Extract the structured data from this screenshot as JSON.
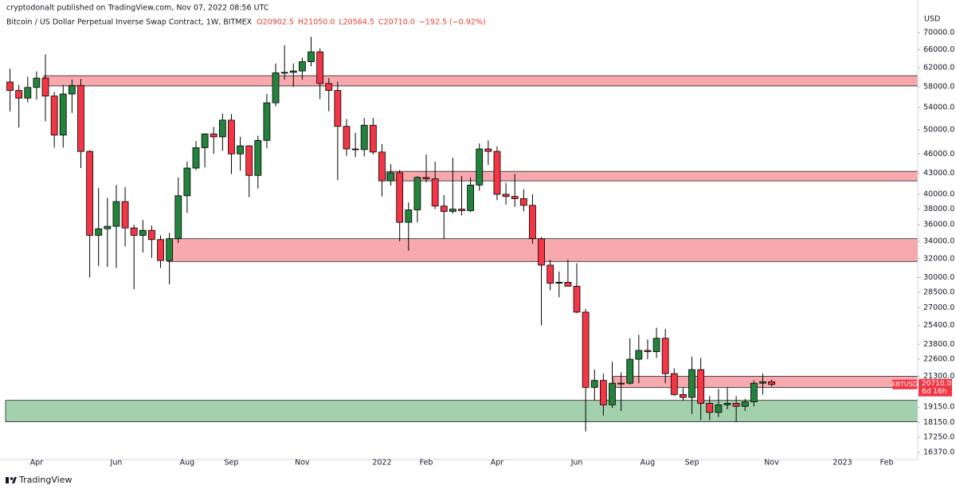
{
  "header": {
    "published": "cryptodonalt published on TradingView.com, Nov 07, 2022 08:56 UTC",
    "symbol": "Bitcoin / US Dollar Perpetual Inverse Swap Contract, 1W, BITMEX",
    "ohlc": [
      "O20902.5",
      "H21050.0",
      "L20564.5",
      "C20710.0"
    ],
    "change": "−192.5 (−0.92%)"
  },
  "chart_data": {
    "type": "candlestick",
    "categories": [
      null,
      null,
      null,
      "Apr",
      null,
      null,
      null,
      null,
      null,
      null,
      null,
      null,
      "Jun",
      null,
      null,
      null,
      null,
      null,
      null,
      null,
      "Aug",
      null,
      null,
      null,
      null,
      "Sep",
      null,
      null,
      null,
      null,
      null,
      null,
      null,
      "Nov",
      null,
      null,
      null,
      null,
      null,
      null,
      null,
      null,
      "2022",
      null,
      null,
      null,
      null,
      "Feb",
      null,
      null,
      null,
      null,
      null,
      null,
      null,
      "Apr",
      null,
      null,
      null,
      null,
      null,
      null,
      null,
      null,
      "Jun",
      null,
      null,
      null,
      null,
      null,
      null,
      null,
      "Aug",
      null,
      null,
      null,
      null,
      "Sep",
      null,
      null,
      null,
      null,
      null,
      null,
      null,
      null,
      "Nov",
      null,
      null,
      null,
      null,
      null,
      null,
      null,
      "2023",
      null,
      null,
      null,
      null,
      "Feb",
      null,
      null,
      null
    ],
    "open": [
      59000,
      57300,
      55800,
      57900,
      59800,
      56200,
      49100,
      56600,
      58300,
      46400,
      34700,
      35500,
      35800,
      39000,
      35600,
      34700,
      35300,
      34200,
      31800,
      34300,
      39800,
      43800,
      47000,
      49300,
      48800,
      51700,
      46000,
      47300,
      42700,
      48200,
      54900,
      60900,
      61000,
      61300,
      63300,
      65500,
      58700,
      57300,
      50600,
      46800,
      46700,
      50800,
      46300,
      41900,
      43100,
      36300,
      37900,
      42400,
      42200,
      38400,
      37700,
      38000,
      37800,
      41300,
      46800,
      46400,
      40000,
      39700,
      39400,
      38500,
      34300,
      31300,
      29400,
      29500,
      29100,
      26600,
      20500,
      21000,
      19300,
      20800,
      20800,
      22600,
      23300,
      23200,
      24300,
      21500,
      20000,
      19800,
      21800,
      19400,
      18800,
      19300,
      19400,
      19200,
      19500,
      20800,
      20902.5,
      null,
      null,
      null,
      null,
      null,
      null,
      null,
      null,
      null,
      null,
      null,
      null,
      null,
      null,
      null,
      null
    ],
    "high": [
      61800,
      58400,
      60100,
      61200,
      64900,
      57000,
      58400,
      59500,
      59600,
      46600,
      40900,
      39500,
      41300,
      41000,
      36000,
      36600,
      35900,
      34700,
      35000,
      42400,
      44800,
      48100,
      49400,
      50500,
      52900,
      52800,
      48800,
      47400,
      49000,
      56600,
      62900,
      67000,
      62900,
      64200,
      69000,
      66300,
      59800,
      59100,
      51900,
      49500,
      52100,
      52100,
      47600,
      44400,
      43500,
      38900,
      42600,
      45900,
      44800,
      39900,
      45400,
      42600,
      42400,
      47700,
      48200,
      47200,
      41600,
      42900,
      40700,
      40000,
      34500,
      31900,
      30600,
      31900,
      31500,
      26900,
      21800,
      21500,
      22400,
      21600,
      24300,
      24600,
      24200,
      25200,
      25100,
      21900,
      20500,
      22800,
      22700,
      19900,
      20400,
      20500,
      19900,
      19700,
      21000,
      21500,
      21050,
      null,
      null,
      null,
      null,
      null,
      null,
      null,
      null,
      null,
      null,
      null,
      null,
      null,
      null,
      null,
      null
    ],
    "low": [
      53300,
      50400,
      55000,
      55500,
      51500,
      47000,
      47000,
      53000,
      43800,
      30000,
      31200,
      31100,
      31000,
      33400,
      28800,
      32700,
      32100,
      31000,
      29300,
      33800,
      37500,
      43500,
      43900,
      46000,
      46500,
      42900,
      43400,
      39600,
      40800,
      46900,
      54200,
      59500,
      58000,
      59500,
      62300,
      55600,
      53300,
      42000,
      45700,
      45500,
      45600,
      45900,
      39700,
      41200,
      34000,
      32900,
      36300,
      41700,
      38000,
      34300,
      37400,
      37200,
      37600,
      40500,
      44300,
      39200,
      38600,
      38300,
      37700,
      33700,
      25400,
      28700,
      28000,
      29100,
      26500,
      17600,
      19600,
      18600,
      19100,
      18900,
      20700,
      20800,
      22600,
      22700,
      20800,
      19900,
      19600,
      18700,
      18300,
      18300,
      18500,
      19000,
      18200,
      18900,
      19200,
      20000,
      20564.5,
      null,
      null,
      null,
      null,
      null,
      null,
      null,
      null,
      null,
      null,
      null,
      null,
      null,
      null,
      null,
      null
    ],
    "close": [
      57300,
      55800,
      57900,
      59800,
      56200,
      49100,
      56600,
      58300,
      46400,
      34700,
      35500,
      35800,
      39000,
      35600,
      34700,
      35300,
      34200,
      31800,
      34300,
      39800,
      43800,
      47000,
      49300,
      48800,
      51700,
      46000,
      47300,
      42700,
      48200,
      54900,
      60900,
      61000,
      61300,
      63300,
      65500,
      58700,
      57300,
      50600,
      46800,
      46700,
      50800,
      46300,
      41900,
      43100,
      36300,
      37900,
      42400,
      42200,
      38400,
      37700,
      38000,
      37800,
      41300,
      46800,
      46400,
      40000,
      39700,
      39400,
      38500,
      34300,
      31300,
      29400,
      29500,
      29100,
      26600,
      20500,
      21000,
      19300,
      20800,
      20800,
      22600,
      23300,
      23200,
      24300,
      21500,
      20000,
      19800,
      21800,
      19400,
      18800,
      19300,
      19400,
      19200,
      19500,
      20800,
      20902.5,
      20710,
      null,
      null,
      null,
      null,
      null,
      null,
      null,
      null,
      null,
      null,
      null,
      null,
      null,
      null,
      null,
      null
    ],
    "up_color": "#23833c",
    "down_color": "#f23645",
    "log": true,
    "ylim": [
      15970,
      75400
    ],
    "yticks": [
      {
        "value": 70000,
        "label": "70000.0"
      },
      {
        "value": 66000,
        "label": "66000.0"
      },
      {
        "value": 62000,
        "label": "62000.0"
      },
      {
        "value": 58000,
        "label": "58000.0"
      },
      {
        "value": 54000,
        "label": "54000.0"
      },
      {
        "value": 50000,
        "label": "50000.0"
      },
      {
        "value": 46000,
        "label": "46000.0"
      },
      {
        "value": 43000,
        "label": "43000.0"
      },
      {
        "value": 40000,
        "label": "40000.0"
      },
      {
        "value": 38000,
        "label": "38000.0"
      },
      {
        "value": 36000,
        "label": "36000.0"
      },
      {
        "value": 34000,
        "label": "34000.0"
      },
      {
        "value": 32000,
        "label": "32000.0"
      },
      {
        "value": 30000,
        "label": "30000.0"
      },
      {
        "value": 28500,
        "label": "28500.0"
      },
      {
        "value": 27000,
        "label": "27000.0"
      },
      {
        "value": 25400,
        "label": "25400.0"
      },
      {
        "value": 23800,
        "label": "23800.0"
      },
      {
        "value": 22600,
        "label": "22600.0"
      },
      {
        "value": 21300,
        "label": "21300.0"
      },
      {
        "value": 19150,
        "label": "19150.0"
      },
      {
        "value": 18150,
        "label": "18150.0"
      },
      {
        "value": 17250,
        "label": "17250.0"
      },
      {
        "value": 16370,
        "label": "16370.0"
      }
    ],
    "grid": false,
    "y_unit": "USD",
    "zones": [
      {
        "low": 58200,
        "high": 60300,
        "color": "#f8a9ae"
      },
      {
        "low": 41900,
        "high": 43300,
        "color": "#f8a9ae"
      },
      {
        "low": 31700,
        "high": 34300,
        "color": "#f8a9ae"
      },
      {
        "low": 20500,
        "high": 21300,
        "color": "#f8a9ae"
      },
      {
        "low": 18200,
        "high": 19600,
        "color": "#a3d1ae"
      }
    ],
    "last_price": {
      "value": 20710,
      "label": "20710.0"
    },
    "symbol_tag": "XBTUSD",
    "countdown": "6d 16h"
  },
  "footer": "TradingView"
}
